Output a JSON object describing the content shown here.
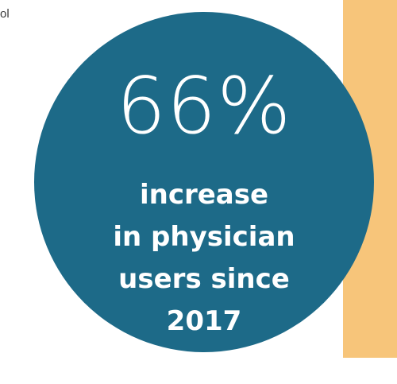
{
  "edge_text": "ol",
  "colors": {
    "circle": "#1d6a88",
    "side_panel": "#f7c57a",
    "text_on_circle": "#ffffff",
    "edge_text": "#3a3a3a"
  },
  "stat": {
    "number": "66%",
    "caption_lines": [
      "increase",
      "in physician",
      "users since",
      "2017"
    ]
  }
}
